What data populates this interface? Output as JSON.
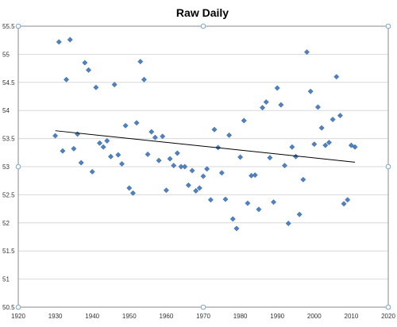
{
  "chart_data": {
    "type": "scatter",
    "title": "Raw Daily",
    "xlabel": "",
    "ylabel": "",
    "xlim": [
      1920,
      2020
    ],
    "ylim": [
      50.5,
      55.5
    ],
    "x_ticks": [
      1920,
      1930,
      1940,
      1950,
      1960,
      1970,
      1980,
      1990,
      2000,
      2010,
      2020
    ],
    "y_ticks": [
      50.5,
      51,
      51.5,
      52,
      52.5,
      53,
      53.5,
      54,
      54.5,
      55,
      55.5
    ],
    "x_tick_labels": [
      "1920",
      "1930",
      "1940",
      "1950",
      "1960",
      "1970",
      "1980",
      "1990",
      "2000",
      "2010",
      "2020"
    ],
    "y_tick_labels": [
      "50.5",
      "51",
      "51.5",
      "52",
      "52.5",
      "53",
      "53.5",
      "54",
      "54.5",
      "55",
      "55.5"
    ],
    "grid": "horizontal",
    "legend": "none",
    "marker": "diamond",
    "colors": {
      "marker": "#4f81bd",
      "trendline": "#000000",
      "grid": "#d9d9d9"
    },
    "series": [
      {
        "x": [
          1930,
          1931,
          1932,
          1933,
          1934,
          1935,
          1936,
          1937,
          1938,
          1939,
          1940,
          1941,
          1942,
          1943,
          1944,
          1945,
          1946,
          1947,
          1948,
          1949,
          1950,
          1951,
          1952,
          1953,
          1954,
          1955,
          1956,
          1957,
          1958,
          1959,
          1960,
          1961,
          1962,
          1963,
          1964,
          1965,
          1966,
          1967,
          1968,
          1969,
          1970,
          1971,
          1972,
          1973,
          1974,
          1975,
          1976,
          1977,
          1978,
          1979,
          1980,
          1981,
          1982,
          1983,
          1984,
          1985,
          1986,
          1987,
          1988,
          1989,
          1990,
          1991,
          1992,
          1993,
          1994,
          1995,
          1996,
          1997,
          1998,
          1999,
          2000,
          2001,
          2002,
          2003,
          2004,
          2005,
          2006,
          2007,
          2008,
          2009,
          2010,
          2011
        ],
        "y": [
          53.55,
          55.22,
          53.28,
          54.55,
          55.26,
          53.32,
          53.58,
          53.07,
          54.85,
          54.72,
          52.91,
          54.41,
          53.42,
          53.35,
          53.46,
          53.18,
          54.46,
          53.21,
          53.05,
          53.73,
          52.62,
          52.53,
          53.78,
          54.87,
          54.55,
          53.22,
          53.62,
          53.52,
          53.11,
          53.54,
          52.58,
          53.14,
          53.02,
          53.24,
          53.0,
          53.0,
          52.67,
          52.93,
          52.57,
          52.62,
          52.83,
          52.96,
          52.41,
          53.66,
          53.34,
          52.89,
          52.42,
          53.56,
          52.07,
          51.9,
          53.17,
          53.82,
          52.35,
          52.84,
          52.85,
          52.24,
          54.05,
          54.15,
          53.16,
          52.37,
          54.4,
          54.1,
          53.02,
          51.99,
          53.35,
          53.18,
          52.15,
          52.77,
          55.04,
          54.34,
          53.4,
          54.06,
          53.69,
          53.38,
          53.43,
          53.84,
          54.6,
          53.91,
          52.34,
          52.41,
          53.38,
          53.35
        ]
      }
    ],
    "trendline": {
      "x": [
        1930,
        2011
      ],
      "y": [
        53.64,
        53.08
      ]
    }
  }
}
